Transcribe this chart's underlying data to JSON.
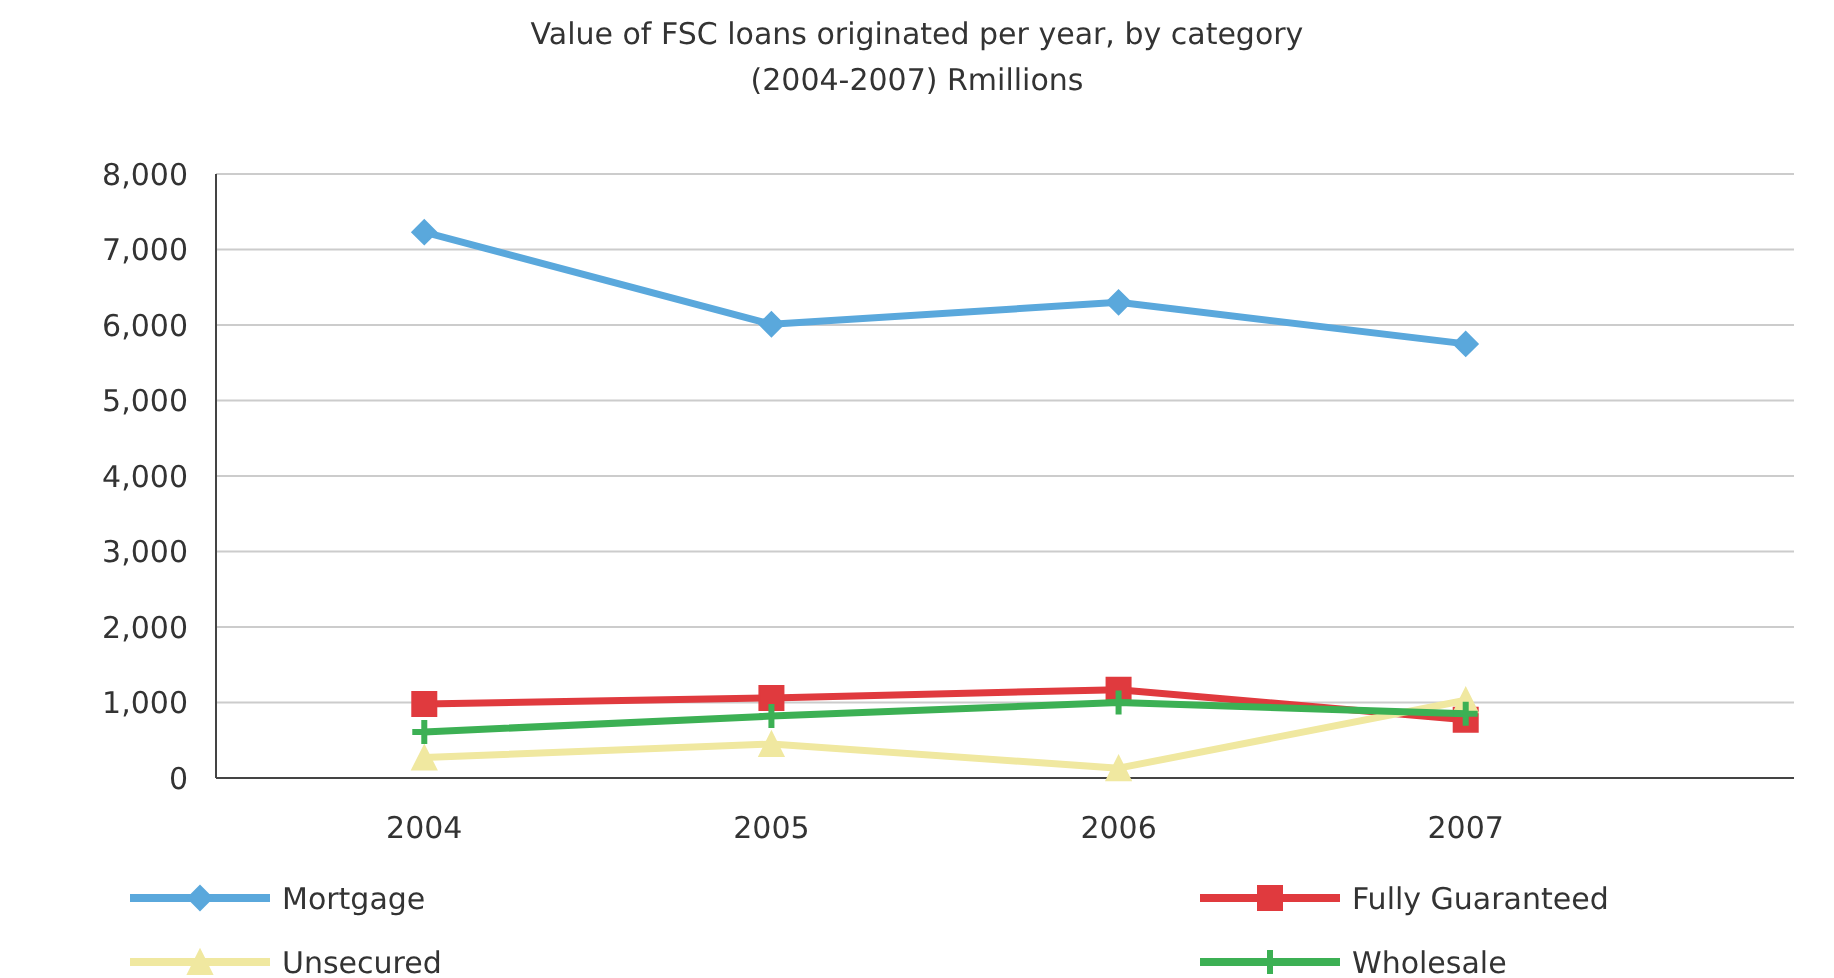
{
  "chart_data": {
    "type": "line",
    "title": "Value of FSC loans originated per year, by category",
    "subtitle": "(2004-2007) Rmillions",
    "categories": [
      "2004",
      "2005",
      "2006",
      "2007"
    ],
    "series": [
      {
        "name": "Mortgage",
        "color": "#5aa8dc",
        "marker": "diamond",
        "values": [
          7230,
          6010,
          6300,
          5750
        ]
      },
      {
        "name": "Fully Guaranteed",
        "color": "#e03a3e",
        "marker": "square",
        "values": [
          980,
          1060,
          1170,
          770
        ]
      },
      {
        "name": "Unsecured",
        "color": "#f0e8a0",
        "marker": "triangle",
        "values": [
          270,
          450,
          130,
          1030
        ]
      },
      {
        "name": "Wholesale",
        "color": "#3cb054",
        "marker": "cross",
        "values": [
          610,
          820,
          1000,
          850
        ]
      }
    ],
    "ylim": [
      0,
      8000
    ],
    "yticks": [
      {
        "value": 0,
        "label": "0"
      },
      {
        "value": 1000,
        "label": "1,000"
      },
      {
        "value": 2000,
        "label": "2,000"
      },
      {
        "value": 3000,
        "label": "3,000"
      },
      {
        "value": 4000,
        "label": "4,000"
      },
      {
        "value": 5000,
        "label": "5,000"
      },
      {
        "value": 6000,
        "label": "6,000"
      },
      {
        "value": 7000,
        "label": "7,000"
      },
      {
        "value": 8000,
        "label": "8,000"
      }
    ],
    "grid": "y",
    "legend": "bottom"
  }
}
